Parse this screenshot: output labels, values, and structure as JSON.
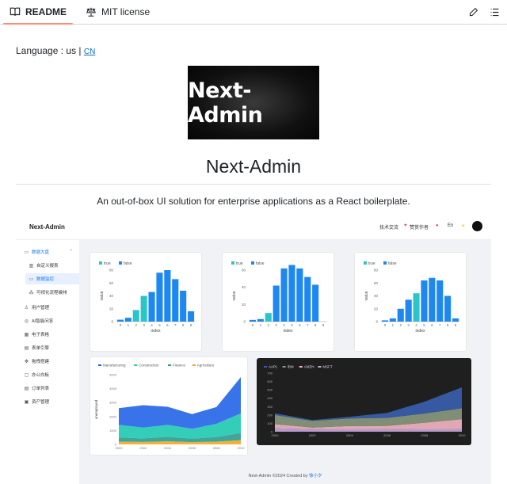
{
  "tabs": [
    {
      "label": "README",
      "icon": "book-icon",
      "active": true
    },
    {
      "label": "MIT license",
      "icon": "scale-icon",
      "active": false
    }
  ],
  "toolbar": {
    "edit_icon": "pencil-icon",
    "outline_icon": "list-icon"
  },
  "readme": {
    "language_prefix": "Language : us |",
    "language_link": "CN",
    "logo_text": "Next-Admin",
    "title": "Next-Admin",
    "tagline": "An out-of-box UI solution for enterprise applications as a React boilerplate."
  },
  "preview": {
    "brand": "Next-Admin",
    "header": {
      "item1": "技术交流",
      "item2": "赞赏作者",
      "lang": "En"
    },
    "sidebar": [
      {
        "label": "数据大盘",
        "icon": "dashboard-icon",
        "level": 0,
        "expanded": true,
        "selected": false
      },
      {
        "label": "自定义报表",
        "icon": "bar-chart-icon",
        "level": 1,
        "selected": false
      },
      {
        "label": "数据监控",
        "icon": "monitor-icon",
        "level": 1,
        "selected": true
      },
      {
        "label": "可视化流程编排",
        "icon": "flow-icon",
        "level": 1,
        "selected": false
      },
      {
        "label": "用户管理",
        "icon": "user-icon",
        "level": 0,
        "selected": false
      },
      {
        "label": "AI智能问答",
        "icon": "ai-icon",
        "level": 0,
        "selected": false
      },
      {
        "label": "电子表格",
        "icon": "table-icon",
        "level": 0,
        "selected": false
      },
      {
        "label": "表单引擎",
        "icon": "form-icon",
        "level": 0,
        "selected": false
      },
      {
        "label": "拖拽搭建",
        "icon": "drag-icon",
        "level": 0,
        "selected": false
      },
      {
        "label": "办公白板",
        "icon": "whiteboard-icon",
        "level": 0,
        "selected": false
      },
      {
        "label": "订单列表",
        "icon": "order-icon",
        "level": 0,
        "selected": false
      },
      {
        "label": "资产管理",
        "icon": "asset-icon",
        "level": 0,
        "selected": false
      }
    ],
    "footer": {
      "text": "Next-Admin ©2024 Created by",
      "author": "徐小夕"
    }
  },
  "colors": {
    "bar_true": "#2bc5c9",
    "bar_false": "#1e87f0",
    "accent": "#1677ff",
    "tab_underline": "#fd8c73"
  },
  "chart_data": [
    {
      "type": "bar",
      "legend": [
        "true",
        "false"
      ],
      "xlabel": "index",
      "ylabel": "value",
      "categories": [
        "0",
        "1",
        "2",
        "3",
        "4",
        "5",
        "6",
        "7",
        "8",
        "9"
      ],
      "values": [
        3,
        6,
        18,
        40,
        46,
        76,
        80,
        66,
        48,
        16
      ],
      "highlight": [
        false,
        false,
        true,
        true,
        false,
        false,
        false,
        false,
        false,
        false
      ],
      "ylim": [
        0,
        80
      ],
      "yticks": [
        0,
        20,
        40,
        60,
        80
      ]
    },
    {
      "type": "bar",
      "legend": [
        "true",
        "false"
      ],
      "xlabel": "index",
      "ylabel": "value",
      "categories": [
        "0",
        "1",
        "2",
        "3",
        "4",
        "5",
        "6",
        "7",
        "8",
        "9"
      ],
      "values": [
        2,
        3,
        10,
        42,
        62,
        66,
        62,
        52,
        43,
        0
      ],
      "highlight": [
        false,
        false,
        true,
        false,
        false,
        false,
        false,
        false,
        false,
        false
      ],
      "ylim": [
        0,
        60
      ],
      "yticks": [
        0,
        20,
        40,
        60
      ]
    },
    {
      "type": "bar",
      "legend": [
        "true",
        "false"
      ],
      "xlabel": "index",
      "ylabel": "value",
      "categories": [
        "0",
        "1",
        "2",
        "3",
        "4",
        "5",
        "6",
        "7",
        "8",
        "9"
      ],
      "values": [
        2,
        5,
        20,
        34,
        44,
        64,
        68,
        64,
        40,
        5
      ],
      "highlight": [
        false,
        false,
        false,
        false,
        true,
        false,
        false,
        false,
        false,
        false
      ],
      "ylim": [
        0,
        80
      ],
      "yticks": [
        0,
        20,
        40,
        60,
        80
      ]
    },
    {
      "type": "area",
      "legend": [
        "Manufacturing",
        "Construction",
        "Finance",
        "Agriculture"
      ],
      "ylabel": "unemployed",
      "x": [
        "2000",
        "2002",
        "2004",
        "2006",
        "2008",
        "2010"
      ],
      "ylim": [
        0,
        5000
      ],
      "yticks": [
        0,
        1000,
        2000,
        3000,
        4000,
        5000
      ],
      "series": [
        {
          "name": "Agriculture",
          "values": [
            200,
            180,
            220,
            160,
            200,
            300
          ]
        },
        {
          "name": "Finance",
          "values": [
            300,
            250,
            330,
            260,
            330,
            520
          ]
        },
        {
          "name": "Construction",
          "values": [
            900,
            780,
            850,
            700,
            950,
            1400
          ]
        },
        {
          "name": "Manufacturing",
          "values": [
            1200,
            1600,
            1300,
            1050,
            1200,
            2600
          ]
        }
      ]
    },
    {
      "type": "area",
      "legend": [
        "AAPL",
        "IBM",
        "AMZN",
        "MSFT"
      ],
      "x": [
        "2000",
        "2002",
        "2004",
        "2006",
        "2008",
        "2010"
      ],
      "ylim": [
        0,
        700
      ],
      "yticks": [
        0,
        100,
        200,
        300,
        400,
        500,
        600,
        700
      ],
      "series": [
        {
          "name": "MSFT",
          "values": [
            40,
            30,
            28,
            30,
            28,
            30
          ]
        },
        {
          "name": "AMZN",
          "values": [
            50,
            20,
            40,
            40,
            80,
            120
          ]
        },
        {
          "name": "IBM",
          "values": [
            110,
            80,
            90,
            95,
            110,
            130
          ]
        },
        {
          "name": "AAPL",
          "values": [
            20,
            10,
            20,
            60,
            140,
            250
          ]
        }
      ]
    }
  ]
}
